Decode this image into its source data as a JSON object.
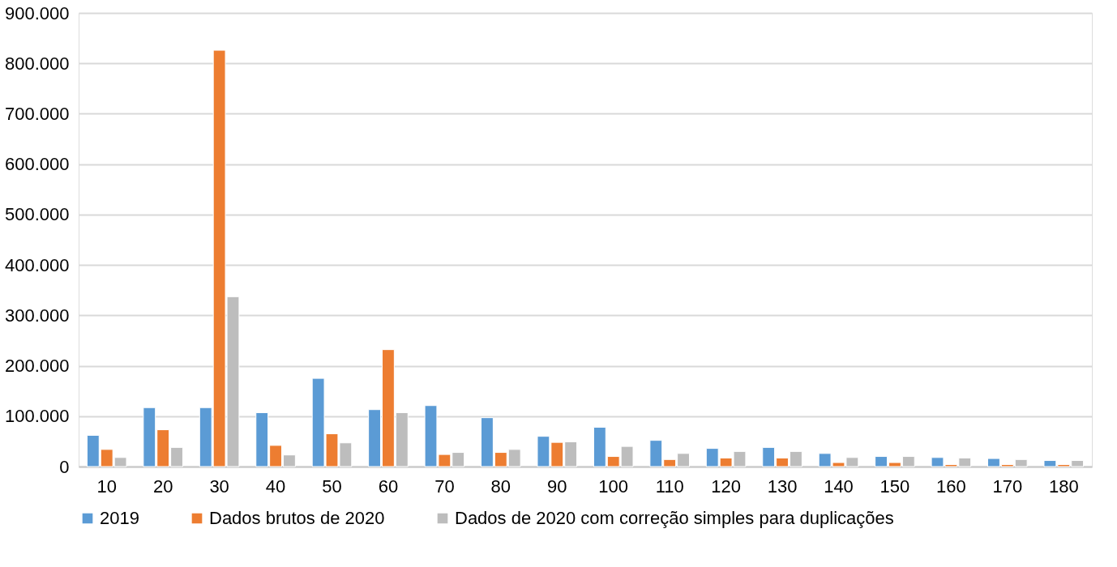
{
  "chart_data": {
    "type": "bar",
    "categories": [
      "10",
      "20",
      "30",
      "40",
      "50",
      "60",
      "70",
      "80",
      "90",
      "100",
      "110",
      "120",
      "130",
      "140",
      "150",
      "160",
      "170",
      "180"
    ],
    "series": [
      {
        "name": "2019",
        "color": "#5b9bd5",
        "values": [
          62000,
          117000,
          117000,
          107000,
          175000,
          113000,
          121000,
          97000,
          60000,
          78000,
          52000,
          36000,
          38000,
          26000,
          20000,
          18000,
          16000,
          12000
        ]
      },
      {
        "name": "Dados brutos de 2020",
        "color": "#ed7d31",
        "values": [
          34000,
          73000,
          826000,
          42000,
          65000,
          232000,
          24000,
          28000,
          48000,
          20000,
          14000,
          17000,
          17000,
          8000,
          8000,
          4000,
          4000,
          4000
        ]
      },
      {
        "name": "Dados de 2020 com correção simples para duplicações",
        "color": "#bdbdbd",
        "values": [
          18000,
          38000,
          337000,
          23000,
          47000,
          107000,
          28000,
          34000,
          49000,
          40000,
          26000,
          30000,
          30000,
          18000,
          20000,
          17000,
          14000,
          12000
        ]
      }
    ],
    "ylim": [
      0,
      900000
    ],
    "yticks": [
      {
        "value": 0,
        "label": "0"
      },
      {
        "value": 100000,
        "label": "100.000"
      },
      {
        "value": 200000,
        "label": "200.000"
      },
      {
        "value": 300000,
        "label": "300.000"
      },
      {
        "value": 400000,
        "label": "400.000"
      },
      {
        "value": 500000,
        "label": "500.000"
      },
      {
        "value": 600000,
        "label": "600.000"
      },
      {
        "value": 700000,
        "label": "700.000"
      },
      {
        "value": 800000,
        "label": "800.000"
      },
      {
        "value": 900000,
        "label": "900.000"
      }
    ],
    "grid": "y",
    "legend": "bottom"
  }
}
